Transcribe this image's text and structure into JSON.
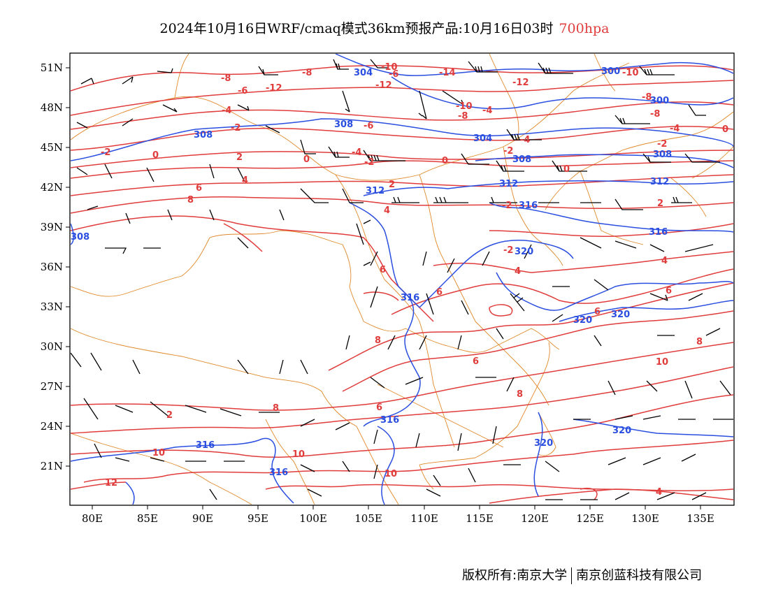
{
  "title": {
    "main": "2024年10月16日WRF/cmaq模式36km预报产品:10月16日03时",
    "level": "700hpa"
  },
  "colors": {
    "temperature": "#e03c3c",
    "height": "#2a4ee0",
    "border": "#e0892a",
    "barb": "#000000"
  },
  "axes": {
    "lat_labels": [
      "51N",
      "48N",
      "45N",
      "42N",
      "39N",
      "36N",
      "33N",
      "30N",
      "27N",
      "24N",
      "21N"
    ],
    "lon_labels": [
      "80E",
      "85E",
      "90E",
      "95E",
      "100E",
      "105E",
      "110E",
      "115E",
      "120E",
      "125E",
      "130E",
      "135E"
    ]
  },
  "temperature_contour_labels": [
    {
      "text": "-14"
    },
    {
      "text": "-12"
    },
    {
      "text": "-12"
    },
    {
      "text": "-12"
    },
    {
      "text": "-10"
    },
    {
      "text": "-10"
    },
    {
      "text": "-10"
    },
    {
      "text": "-8"
    },
    {
      "text": "-8"
    },
    {
      "text": "-8"
    },
    {
      "text": "-8"
    },
    {
      "text": "-8"
    },
    {
      "text": "-6"
    },
    {
      "text": "-6"
    },
    {
      "text": "-6"
    },
    {
      "text": "-4"
    },
    {
      "text": "-4"
    },
    {
      "text": "-4"
    },
    {
      "text": "-4"
    },
    {
      "text": "-2"
    },
    {
      "text": "-2"
    },
    {
      "text": "-2"
    },
    {
      "text": "-2"
    },
    {
      "text": "-2"
    },
    {
      "text": "-2"
    },
    {
      "text": "0"
    },
    {
      "text": "0"
    },
    {
      "text": "0"
    },
    {
      "text": "0"
    },
    {
      "text": "0"
    },
    {
      "text": "2"
    },
    {
      "text": "2"
    },
    {
      "text": "2"
    },
    {
      "text": "4"
    },
    {
      "text": "4"
    },
    {
      "text": "4"
    },
    {
      "text": "4"
    },
    {
      "text": "6"
    },
    {
      "text": "6"
    },
    {
      "text": "6"
    },
    {
      "text": "6"
    },
    {
      "text": "6"
    },
    {
      "text": "6"
    },
    {
      "text": "8"
    },
    {
      "text": "8"
    },
    {
      "text": "8"
    },
    {
      "text": "8"
    },
    {
      "text": "8"
    },
    {
      "text": "10"
    },
    {
      "text": "10"
    },
    {
      "text": "10"
    },
    {
      "text": "10"
    },
    {
      "text": "12"
    },
    {
      "text": "2"
    },
    {
      "text": "4"
    },
    {
      "text": "6"
    },
    {
      "text": "-4"
    },
    {
      "text": "-2"
    }
  ],
  "height_contour_labels": [
    {
      "text": "304"
    },
    {
      "text": "304"
    },
    {
      "text": "300"
    },
    {
      "text": "300"
    },
    {
      "text": "308"
    },
    {
      "text": "308"
    },
    {
      "text": "308"
    },
    {
      "text": "308"
    },
    {
      "text": "312"
    },
    {
      "text": "312"
    },
    {
      "text": "312"
    },
    {
      "text": "316"
    },
    {
      "text": "316"
    },
    {
      "text": "316"
    },
    {
      "text": "316"
    },
    {
      "text": "316"
    },
    {
      "text": "316"
    },
    {
      "text": "320"
    },
    {
      "text": "320"
    },
    {
      "text": "320"
    },
    {
      "text": "320"
    },
    {
      "text": "320"
    },
    {
      "text": "308"
    }
  ],
  "footer": {
    "left": "版权所有:南京大学",
    "right": "南京创蓝科技有限公司"
  }
}
